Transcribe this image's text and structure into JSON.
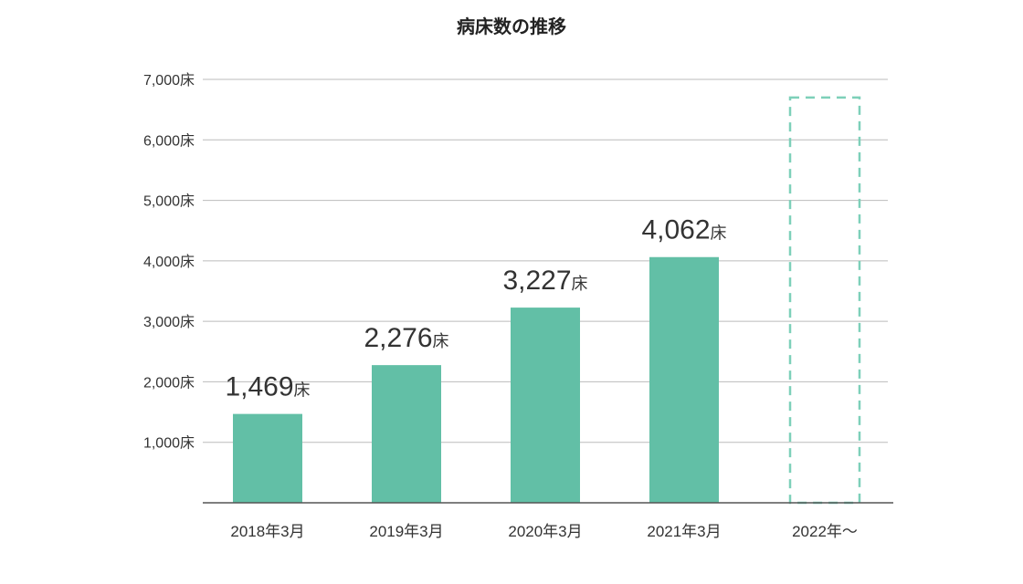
{
  "chart_data": {
    "type": "bar",
    "title": "病床数の推移",
    "categories": [
      "2018年3月",
      "2019年3月",
      "2020年3月",
      "2021年3月",
      "2022年～"
    ],
    "values": [
      1469,
      2276,
      3227,
      4062,
      null
    ],
    "data_labels": [
      "1,469",
      "2,276",
      "3,227",
      "4,062",
      ""
    ],
    "unit": "床",
    "yticks": [
      "1,000床",
      "2,000床",
      "3,000床",
      "4,000床",
      "5,000床",
      "6,000床",
      "7,000床"
    ],
    "ylim": [
      0,
      7000
    ],
    "placeholder_bar": {
      "category": "2022年～",
      "value": 6700,
      "style": "dashed-outline"
    },
    "grid": true,
    "colors": {
      "bar": "#62bfa6",
      "placeholder": "#7dd0b9",
      "grid": "#bbbbbb",
      "axis": "#555555"
    }
  }
}
